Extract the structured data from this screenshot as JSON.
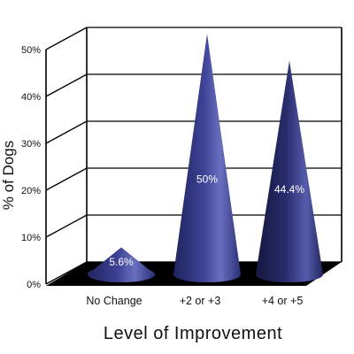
{
  "chart_data": {
    "type": "bar",
    "style": "3d-cone",
    "categories": [
      "No Change",
      "+2 or +3",
      "+4 or +5"
    ],
    "values": [
      5.6,
      50,
      44.4
    ],
    "data_labels": [
      "5.6%",
      "50%",
      "44.4%"
    ],
    "ylim": [
      0,
      50
    ],
    "yticks": [
      0,
      10,
      20,
      30,
      40,
      50
    ],
    "ytick_labels": [
      "0%",
      "10%",
      "20%",
      "30%",
      "40%",
      "50%"
    ],
    "xlabel": "Level of Improvement",
    "ylabel": "% of Dogs",
    "grid": true,
    "legend": "none",
    "colors": {
      "cone": "#3a3f8f",
      "floor": "#000000",
      "grid": "#000000"
    }
  }
}
